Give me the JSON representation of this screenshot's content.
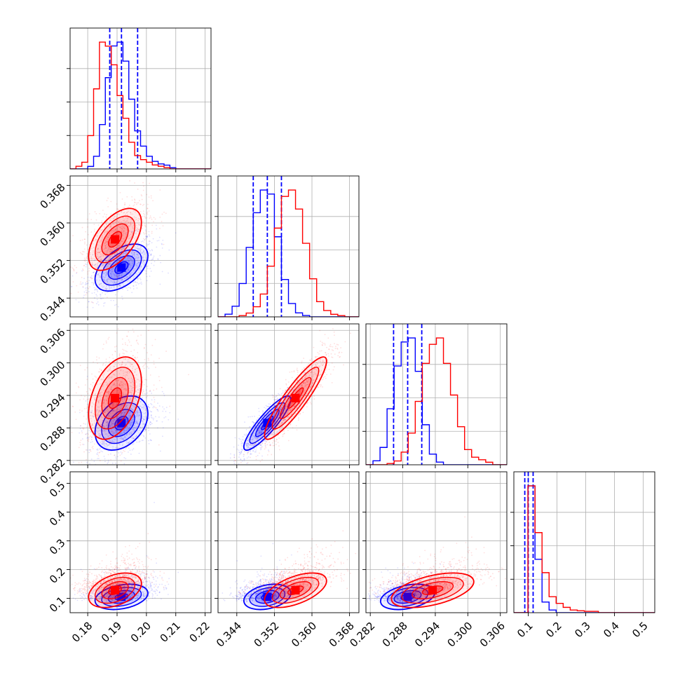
{
  "chart_data": {
    "type": "corner",
    "title": "",
    "parameters": [
      {
        "range": [
          0.174,
          0.222
        ],
        "ticks": [
          0.18,
          0.19,
          0.2,
          0.21,
          0.22
        ],
        "tick_labels": [
          "0.18",
          "0.19",
          "0.20",
          "0.21",
          "0.22"
        ]
      },
      {
        "range": [
          0.34,
          0.37
        ],
        "ticks": [
          0.344,
          0.352,
          0.36,
          0.368
        ],
        "tick_labels": [
          "0.344",
          "0.352",
          "0.360",
          "0.368"
        ]
      },
      {
        "range": [
          0.2812,
          0.3072
        ],
        "ticks": [
          0.282,
          0.288,
          0.294,
          0.3,
          0.306
        ],
        "tick_labels": [
          "0.282",
          "0.288",
          "0.294",
          "0.300",
          "0.306"
        ]
      },
      {
        "range": [
          0.05,
          0.54
        ],
        "ticks": [
          0.1,
          0.2,
          0.3,
          0.4,
          0.5
        ],
        "tick_labels": [
          "0.1",
          "0.2",
          "0.3",
          "0.4",
          "0.5"
        ]
      }
    ],
    "grid": true,
    "series": [
      {
        "color": "#0000ff",
        "mean": [
          0.1915,
          0.3505,
          0.2889,
          0.105
        ],
        "std": [
          0.0045,
          0.0025,
          0.0025,
          0.022
        ],
        "quantiles": [
          [
            0.1875,
            0.1915,
            0.197
          ],
          [
            0.3475,
            0.3505,
            0.3535
          ],
          [
            0.2863,
            0.2889,
            0.2915
          ],
          [
            0.088,
            0.1,
            0.117
          ]
        ],
        "histograms": [
          {
            "bin_edges": [
              0.174,
              0.176,
              0.178,
              0.18,
              0.182,
              0.184,
              0.186,
              0.188,
              0.19,
              0.192,
              0.194,
              0.196,
              0.198,
              0.2,
              0.202,
              0.204,
              0.206,
              0.208,
              0.21,
              0.212,
              0.214,
              0.216,
              0.218,
              0.22,
              0.222
            ],
            "counts": [
              0.0,
              0.0,
              0.0,
              0.02,
              0.1,
              0.35,
              0.72,
              0.97,
              1.0,
              0.85,
              0.55,
              0.3,
              0.18,
              0.1,
              0.06,
              0.04,
              0.03,
              0.01,
              0.0,
              0.0,
              0.0,
              0.0,
              0.0,
              0.0
            ]
          },
          {
            "bin_edges": [
              0.34,
              0.3415,
              0.343,
              0.3445,
              0.346,
              0.3475,
              0.349,
              0.3505,
              0.352,
              0.3535,
              0.355,
              0.3565,
              0.358,
              0.3595,
              0.361,
              0.3625,
              0.364,
              0.3655,
              0.367,
              0.3685,
              0.37
            ],
            "counts": [
              0.0,
              0.02,
              0.08,
              0.25,
              0.52,
              0.78,
              0.95,
              0.92,
              0.6,
              0.28,
              0.1,
              0.03,
              0.01,
              0.0,
              0.0,
              0.0,
              0.0,
              0.0,
              0.0,
              0.0
            ]
          },
          {
            "bin_edges": [
              0.2812,
              0.2825,
              0.2838,
              0.2851,
              0.2864,
              0.2877,
              0.289,
              0.2903,
              0.2916,
              0.2929,
              0.2942,
              0.2955,
              0.2968,
              0.2981,
              0.2994,
              0.3007,
              0.302,
              0.3033,
              0.3046,
              0.3059,
              0.3072
            ],
            "counts": [
              0.0,
              0.03,
              0.13,
              0.42,
              0.74,
              0.92,
              0.95,
              0.7,
              0.3,
              0.08,
              0.02,
              0.0,
              0.0,
              0.0,
              0.0,
              0.0,
              0.0,
              0.0,
              0.0,
              0.0
            ]
          },
          {
            "bin_edges": [
              0.05,
              0.0745,
              0.099,
              0.1235,
              0.148,
              0.1725,
              0.197,
              0.2215,
              0.246,
              0.2705,
              0.295,
              0.3195,
              0.344,
              0.3685,
              0.393,
              0.4175,
              0.442,
              0.4665,
              0.491,
              0.5155,
              0.54
            ],
            "counts": [
              0.0,
              0.0,
              0.95,
              0.4,
              0.08,
              0.02,
              0.0,
              0.0,
              0.0,
              0.0,
              0.0,
              0.0,
              0.0,
              0.0,
              0.0,
              0.0,
              0.0,
              0.0,
              0.0,
              0.0
            ]
          }
        ],
        "pairs": [
          {
            "x": 0,
            "y": 1,
            "corr": 0.5
          },
          {
            "x": 0,
            "y": 2,
            "corr": 0.35
          },
          {
            "x": 1,
            "y": 2,
            "corr": 0.88
          },
          {
            "x": 0,
            "y": 3,
            "corr": 0.3
          },
          {
            "x": 1,
            "y": 3,
            "corr": 0.3
          },
          {
            "x": 2,
            "y": 3,
            "corr": 0.35
          }
        ]
      },
      {
        "color": "#ff0000",
        "mean": [
          0.1893,
          0.3565,
          0.2935,
          0.128
        ],
        "std": [
          0.0045,
          0.0033,
          0.0038,
          0.03
        ],
        "histograms": [
          {
            "bin_edges": [
              0.174,
              0.176,
              0.178,
              0.18,
              0.182,
              0.184,
              0.186,
              0.188,
              0.19,
              0.192,
              0.194,
              0.196,
              0.198,
              0.2,
              0.202,
              0.204,
              0.206,
              0.208,
              0.21,
              0.212,
              0.214,
              0.216,
              0.218,
              0.22,
              0.222
            ],
            "counts": [
              0.0,
              0.02,
              0.05,
              0.25,
              0.6,
              0.95,
              0.92,
              0.78,
              0.55,
              0.38,
              0.2,
              0.1,
              0.07,
              0.05,
              0.03,
              0.02,
              0.01,
              0.0,
              0.0,
              0.0,
              0.0,
              0.0,
              0.0,
              0.0
            ]
          },
          {
            "bin_edges": [
              0.34,
              0.3415,
              0.343,
              0.3445,
              0.346,
              0.3475,
              0.349,
              0.3505,
              0.352,
              0.3535,
              0.355,
              0.3565,
              0.358,
              0.3595,
              0.361,
              0.3625,
              0.364,
              0.3655,
              0.367,
              0.3685,
              0.37
            ],
            "counts": [
              0.0,
              0.0,
              0.0,
              0.01,
              0.03,
              0.08,
              0.18,
              0.4,
              0.7,
              0.95,
              1.0,
              0.85,
              0.58,
              0.3,
              0.12,
              0.05,
              0.02,
              0.01,
              0.0,
              0.0
            ]
          },
          {
            "bin_edges": [
              0.2812,
              0.2825,
              0.2838,
              0.2851,
              0.2864,
              0.2877,
              0.289,
              0.2903,
              0.2916,
              0.2929,
              0.2942,
              0.2955,
              0.2968,
              0.2981,
              0.2994,
              0.3007,
              0.302,
              0.3033,
              0.3046,
              0.3059,
              0.3072
            ],
            "counts": [
              0.0,
              0.0,
              0.0,
              0.01,
              0.03,
              0.1,
              0.25,
              0.5,
              0.8,
              0.95,
              1.0,
              0.8,
              0.55,
              0.3,
              0.12,
              0.06,
              0.04,
              0.02,
              0.0,
              0.0
            ]
          },
          {
            "bin_edges": [
              0.05,
              0.0745,
              0.099,
              0.1235,
              0.148,
              0.1725,
              0.197,
              0.2215,
              0.246,
              0.2705,
              0.295,
              0.3195,
              0.344,
              0.3685,
              0.393,
              0.4175,
              0.442,
              0.4665,
              0.491,
              0.5155,
              0.54
            ],
            "counts": [
              0.0,
              0.0,
              0.95,
              0.6,
              0.3,
              0.12,
              0.07,
              0.04,
              0.02,
              0.015,
              0.01,
              0.01,
              0.0,
              0.0,
              0.0,
              0.0,
              0.0,
              0.0,
              0.0,
              0.0
            ]
          }
        ],
        "pairs": [
          {
            "x": 0,
            "y": 1,
            "corr": 0.55
          },
          {
            "x": 0,
            "y": 2,
            "corr": 0.4
          },
          {
            "x": 1,
            "y": 2,
            "corr": 0.9
          },
          {
            "x": 0,
            "y": 3,
            "corr": 0.4
          },
          {
            "x": 1,
            "y": 3,
            "corr": 0.55
          },
          {
            "x": 2,
            "y": 3,
            "corr": 0.5
          }
        ]
      }
    ]
  }
}
